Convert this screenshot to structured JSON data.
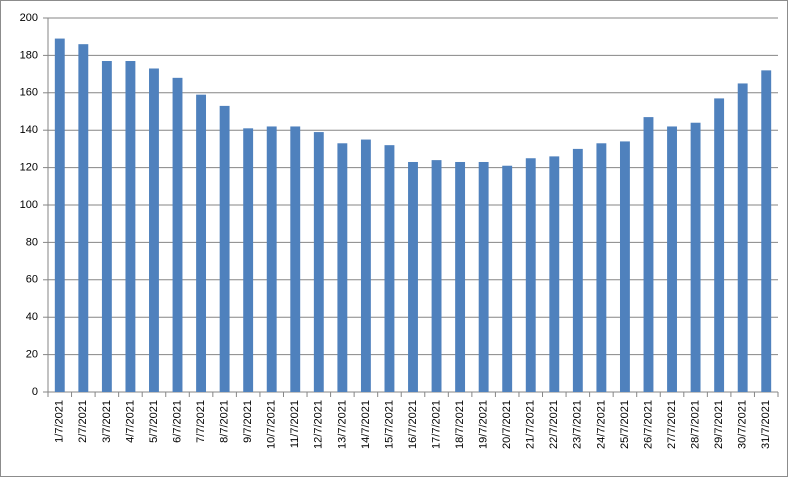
{
  "chart_data": {
    "type": "bar",
    "categories": [
      "1/7/2021",
      "2/7/2021",
      "3/7/2021",
      "4/7/2021",
      "5/7/2021",
      "6/7/2021",
      "7/7/2021",
      "8/7/2021",
      "9/7/2021",
      "10/7/2021",
      "11/7/2021",
      "12/7/2021",
      "13/7/2021",
      "14/7/2021",
      "15/7/2021",
      "16/7/2021",
      "17/7/2021",
      "18/7/2021",
      "19/7/2021",
      "20/7/2021",
      "21/7/2021",
      "22/7/2021",
      "23/7/2021",
      "24/7/2021",
      "25/7/2021",
      "26/7/2021",
      "27/7/2021",
      "28/7/2021",
      "29/7/2021",
      "30/7/2021",
      "31/7/2021"
    ],
    "values": [
      189,
      186,
      177,
      177,
      173,
      168,
      159,
      153,
      141,
      142,
      142,
      139,
      133,
      135,
      132,
      123,
      124,
      123,
      123,
      121,
      125,
      126,
      130,
      133,
      134,
      147,
      142,
      144,
      157,
      165,
      172
    ],
    "color": "#4f81bd",
    "ylim": [
      0,
      200
    ],
    "yticks": [
      0,
      20,
      40,
      60,
      80,
      100,
      120,
      140,
      160,
      180,
      200
    ],
    "grid": true
  }
}
